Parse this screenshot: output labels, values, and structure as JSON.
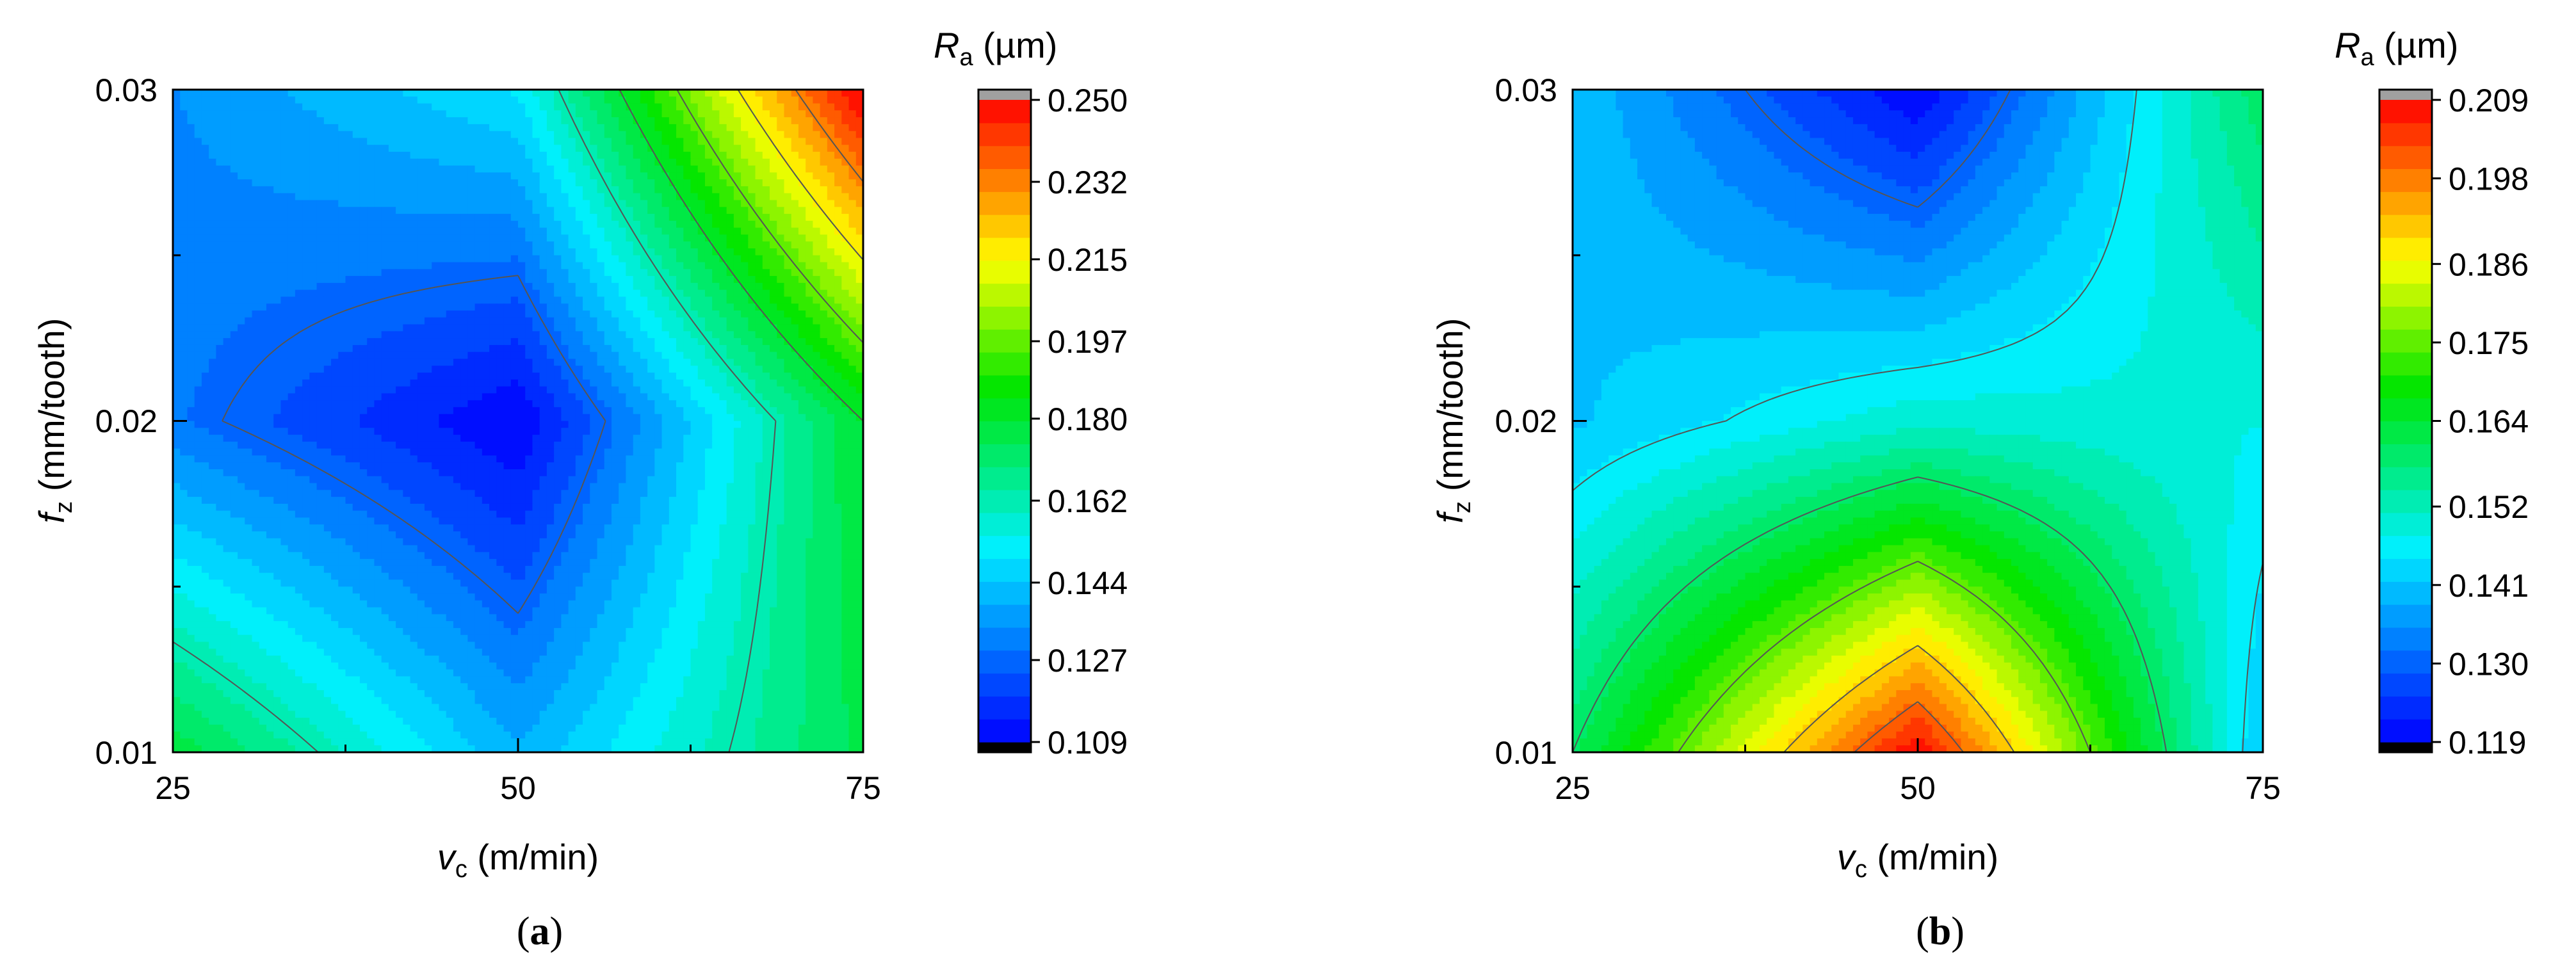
{
  "chart_data": [
    {
      "type": "heatmap",
      "panel_label": "a",
      "xlabel": {
        "symbol": "v",
        "sub": "c",
        "unit": " (m/min)"
      },
      "ylabel": {
        "symbol": "f",
        "sub": "z",
        "unit": " (mm/tooth)"
      },
      "x_ticks": [
        "25",
        "50",
        "75"
      ],
      "y_ticks": [
        "0.01",
        "0.02",
        "0.03"
      ],
      "xlim": [
        25,
        75
      ],
      "ylim": [
        0.01,
        0.03
      ],
      "grid_x": [
        25,
        50,
        75
      ],
      "grid_y": [
        0.01,
        0.02,
        0.03
      ],
      "z": [
        [
          0.178,
          0.14,
          0.176
        ],
        [
          0.13,
          0.109,
          0.18
        ],
        [
          0.134,
          0.15,
          0.252
        ]
      ],
      "colorbar": {
        "title_symbol": "R",
        "title_sub": "a",
        "title_unit": " (µm)",
        "tick_labels": [
          "0.250",
          "0.232",
          "0.215",
          "0.197",
          "0.180",
          "0.162",
          "0.144",
          "0.127",
          "0.109"
        ],
        "tick_values": [
          0.25,
          0.232,
          0.215,
          0.197,
          0.18,
          0.162,
          0.144,
          0.127,
          0.109
        ],
        "min": 0.109,
        "max": 0.25,
        "over_color": "#a0a0a0",
        "under_color": "#000000"
      },
      "contour_levels": [
        0.127,
        0.162,
        0.18,
        0.197,
        0.215,
        0.232
      ]
    },
    {
      "type": "heatmap",
      "panel_label": "b",
      "xlabel": {
        "symbol": "v",
        "sub": "c",
        "unit": " (m/min)"
      },
      "ylabel": {
        "symbol": "f",
        "sub": "z",
        "unit": " (mm/tooth)"
      },
      "x_ticks": [
        "25",
        "50",
        "75"
      ],
      "y_ticks": [
        "0.01",
        "0.02",
        "0.03"
      ],
      "xlim": [
        25,
        75
      ],
      "ylim": [
        0.01,
        0.03
      ],
      "grid_x": [
        25,
        50,
        75
      ],
      "grid_y": [
        0.01,
        0.02,
        0.03
      ],
      "z": [
        [
          0.16,
          0.209,
          0.141
        ],
        [
          0.141,
          0.15,
          0.148
        ],
        [
          0.141,
          0.119,
          0.16
        ]
      ],
      "colorbar": {
        "title_symbol": "R",
        "title_sub": "a",
        "title_unit": " (µm)",
        "tick_labels": [
          "0.209",
          "0.198",
          "0.186",
          "0.175",
          "0.164",
          "0.152",
          "0.141",
          "0.130",
          "0.119"
        ],
        "tick_values": [
          0.209,
          0.198,
          0.186,
          0.175,
          0.164,
          0.152,
          0.141,
          0.13,
          0.119
        ],
        "min": 0.119,
        "max": 0.209,
        "over_color": "#a0a0a0",
        "under_color": "#000000"
      },
      "contour_levels": [
        0.13,
        0.145,
        0.16,
        0.175,
        0.19,
        0.2
      ]
    }
  ],
  "colors": {
    "background": "#ffffff",
    "axis": "#000000",
    "contour": "#555555"
  }
}
